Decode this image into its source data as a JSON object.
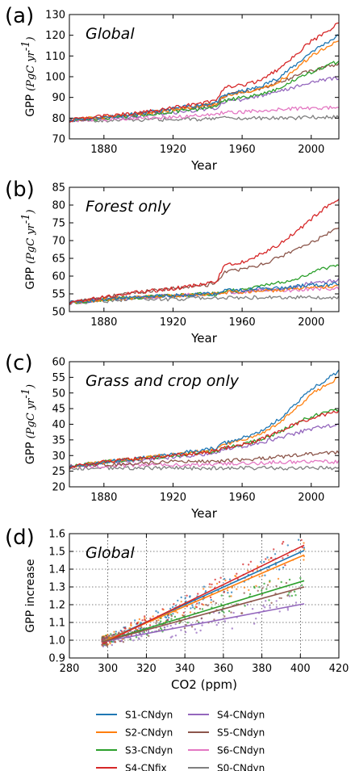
{
  "figure": {
    "legend_entries": [
      {
        "label": "S1-CNdyn",
        "color": "#1f77b4"
      },
      {
        "label": "S2-CNdyn",
        "color": "#ff7f0e"
      },
      {
        "label": "S3-CNdyn",
        "color": "#2ca02c"
      },
      {
        "label": "S4-CNfix",
        "color": "#d62728"
      },
      {
        "label": "S4-CNdyn",
        "color": "#9467bd"
      },
      {
        "label": "S5-CNdyn",
        "color": "#8c564b"
      },
      {
        "label": "S6-CNdyn",
        "color": "#e377c2"
      },
      {
        "label": "S0-CNdyn",
        "color": "#7f7f7f"
      }
    ]
  },
  "chart_data": [
    {
      "type": "line",
      "panel": "(a)",
      "title": "Global",
      "xlabel": "Year",
      "ylabel": "GPP",
      "ylabel_unit": "(PgC yr^-1)",
      "xlim": [
        1860,
        2016
      ],
      "ylim": [
        70,
        130
      ],
      "xticks": [
        1880,
        1920,
        1960,
        2000
      ],
      "yticks": [
        70,
        80,
        90,
        100,
        110,
        120,
        130
      ],
      "x": [
        1860,
        1880,
        1900,
        1920,
        1940,
        1945,
        1950,
        1960,
        1970,
        1980,
        1990,
        2000,
        2010,
        2016
      ],
      "series": [
        {
          "name": "S1-CNdyn",
          "color": "#1f77b4",
          "values": [
            79,
            80.5,
            82,
            84.5,
            87,
            87.5,
            91,
            93,
            95,
            99,
            105,
            112,
            117,
            120
          ]
        },
        {
          "name": "S2-CNdyn",
          "color": "#ff7f0e",
          "values": [
            79,
            80.5,
            82,
            84,
            86.5,
            87,
            90.5,
            92,
            93.5,
            97,
            103,
            110,
            115,
            118
          ]
        },
        {
          "name": "S3-CNdyn",
          "color": "#2ca02c",
          "values": [
            79,
            80,
            81.5,
            83,
            85,
            85.5,
            88.5,
            90,
            91.5,
            94,
            98,
            102,
            106,
            107
          ]
        },
        {
          "name": "S4-CNfix",
          "color": "#d62728",
          "values": [
            79,
            81,
            82.5,
            85,
            87.5,
            88,
            95,
            96,
            98,
            103,
            110,
            117,
            122,
            126
          ]
        },
        {
          "name": "S4-CNdyn",
          "color": "#9467bd",
          "values": [
            79,
            80,
            81,
            82.5,
            84.5,
            85,
            88,
            89,
            90.5,
            92.5,
            95,
            97,
            99,
            99.5
          ]
        },
        {
          "name": "S5-CNdyn",
          "color": "#8c564b",
          "values": [
            79,
            80.5,
            82,
            84,
            86,
            86.5,
            91,
            92.5,
            94,
            97,
            100,
            103,
            105,
            106
          ]
        },
        {
          "name": "S6-CNdyn",
          "color": "#e377c2",
          "values": [
            79,
            79.5,
            80,
            80.5,
            81.5,
            82,
            83,
            83,
            83.5,
            84,
            84.5,
            85,
            85,
            85
          ]
        },
        {
          "name": "S0-CNdyn",
          "color": "#7f7f7f",
          "values": [
            79,
            79,
            79,
            79.5,
            79.5,
            79.5,
            80,
            80,
            80,
            80,
            80,
            80.5,
            80.5,
            80.5
          ]
        }
      ]
    },
    {
      "type": "line",
      "panel": "(b)",
      "title": "Forest only",
      "xlabel": "Year",
      "ylabel": "GPP",
      "ylabel_unit": "(PgC yr^-1)",
      "xlim": [
        1860,
        2016
      ],
      "ylim": [
        50,
        85
      ],
      "xticks": [
        1880,
        1920,
        1960,
        2000
      ],
      "yticks": [
        50,
        55,
        60,
        65,
        70,
        75,
        80,
        85
      ],
      "x": [
        1860,
        1880,
        1900,
        1920,
        1940,
        1945,
        1950,
        1960,
        1970,
        1980,
        1990,
        2000,
        2010,
        2016
      ],
      "series": [
        {
          "name": "S1-CNdyn",
          "color": "#1f77b4",
          "values": [
            52.5,
            53.5,
            54,
            54.5,
            55,
            55,
            56,
            56,
            56.5,
            56.5,
            57,
            57.5,
            57.5,
            58
          ]
        },
        {
          "name": "S2-CNdyn",
          "color": "#ff7f0e",
          "values": [
            52.5,
            53.5,
            54,
            54.5,
            55,
            55,
            55.5,
            55.5,
            56,
            56,
            56.5,
            57,
            57,
            57.5
          ]
        },
        {
          "name": "S3-CNdyn",
          "color": "#2ca02c",
          "values": [
            52.5,
            53.5,
            54,
            54.5,
            55,
            55,
            56,
            56,
            57,
            58,
            59,
            61,
            62.5,
            63
          ]
        },
        {
          "name": "S4-CNfix",
          "color": "#d62728",
          "values": [
            52.5,
            54,
            55.5,
            56.5,
            58,
            58.5,
            63,
            64,
            66,
            68.5,
            72,
            76,
            80,
            82
          ]
        },
        {
          "name": "S4-CNdyn",
          "color": "#9467bd",
          "values": [
            52.5,
            53.5,
            54,
            54.5,
            55,
            55,
            55.5,
            55.5,
            56,
            56.5,
            57,
            58,
            58.5,
            59
          ]
        },
        {
          "name": "S5-CNdyn",
          "color": "#8c564b",
          "values": [
            52.5,
            54,
            55.5,
            56.5,
            57.5,
            58,
            61,
            62,
            63,
            65,
            67,
            69.5,
            72,
            73.5
          ]
        },
        {
          "name": "S6-CNdyn",
          "color": "#e377c2",
          "values": [
            52.5,
            53.5,
            54,
            54.5,
            55,
            55,
            55.5,
            55.5,
            56,
            56,
            56,
            56.5,
            56.5,
            56.5
          ]
        },
        {
          "name": "S0-CNdyn",
          "color": "#7f7f7f",
          "values": [
            52.5,
            53,
            53.5,
            53.5,
            54,
            54,
            54,
            54,
            54,
            54,
            54,
            54,
            54,
            54
          ]
        }
      ]
    },
    {
      "type": "line",
      "panel": "(c)",
      "title": "Grass and crop only",
      "xlabel": "Year",
      "ylabel": "GPP",
      "ylabel_unit": "(PgC yr^-1)",
      "xlim": [
        1860,
        2016
      ],
      "ylim": [
        20,
        60
      ],
      "xticks": [
        1880,
        1920,
        1960,
        2000
      ],
      "yticks": [
        20,
        25,
        30,
        35,
        40,
        45,
        50,
        55,
        60
      ],
      "x": [
        1860,
        1880,
        1900,
        1920,
        1940,
        1945,
        1950,
        1960,
        1970,
        1980,
        1990,
        2000,
        2010,
        2016
      ],
      "series": [
        {
          "name": "S1-CNdyn",
          "color": "#1f77b4",
          "values": [
            26.5,
            28,
            29,
            30.5,
            32,
            32.5,
            34,
            35.5,
            37.5,
            41,
            46,
            51,
            55,
            57
          ]
        },
        {
          "name": "S2-CNdyn",
          "color": "#ff7f0e",
          "values": [
            26.5,
            28,
            29,
            30.5,
            31.5,
            32,
            33.5,
            35,
            36.5,
            40,
            44.5,
            49.5,
            53,
            55
          ]
        },
        {
          "name": "S3-CNdyn",
          "color": "#2ca02c",
          "values": [
            26.5,
            28,
            29,
            30,
            31,
            31.5,
            32.5,
            33.5,
            35,
            37,
            40,
            42.5,
            44,
            45
          ]
        },
        {
          "name": "S4-CNfix",
          "color": "#d62728",
          "values": [
            26.5,
            28,
            29,
            30,
            31,
            31.5,
            32.5,
            33.5,
            35,
            37.5,
            40,
            42,
            43.5,
            44
          ]
        },
        {
          "name": "S4-CNdyn",
          "color": "#9467bd",
          "values": [
            26.5,
            27.5,
            28.5,
            29.5,
            30.5,
            31,
            32,
            33,
            34,
            35.5,
            37,
            38.5,
            39.5,
            40
          ]
        },
        {
          "name": "S5-CNdyn",
          "color": "#8c564b",
          "values": [
            26.5,
            27,
            27.5,
            28,
            28,
            28,
            28.5,
            28.5,
            29,
            29.5,
            30,
            30.5,
            31,
            31
          ]
        },
        {
          "name": "S6-CNdyn",
          "color": "#e377c2",
          "values": [
            26.5,
            26.5,
            27,
            27,
            27,
            27,
            27.5,
            27.5,
            27.5,
            28,
            28,
            28,
            28,
            28
          ]
        },
        {
          "name": "S0-CNdyn",
          "color": "#7f7f7f",
          "values": [
            26,
            26,
            26,
            26,
            26,
            26,
            26,
            26,
            26,
            26,
            26,
            26,
            26,
            26
          ]
        }
      ]
    },
    {
      "type": "scatter",
      "panel": "(d)",
      "title": "Global",
      "xlabel": "CO2 (ppm)",
      "ylabel": "GPP increase",
      "xlim": [
        280,
        420
      ],
      "ylim": [
        0.9,
        1.6
      ],
      "xticks": [
        280,
        300,
        320,
        340,
        360,
        380,
        400,
        420
      ],
      "yticks": [
        0.9,
        1.0,
        1.1,
        1.2,
        1.3,
        1.4,
        1.5,
        1.6
      ],
      "grid": true,
      "fit_x": [
        297,
        402
      ],
      "series": [
        {
          "name": "S1-CNdyn",
          "color": "#1f77b4",
          "fit": [
            0.99,
            1.505
          ]
        },
        {
          "name": "S2-CNdyn",
          "color": "#ff7f0e",
          "fit": [
            0.99,
            1.48
          ]
        },
        {
          "name": "S3-CNdyn",
          "color": "#2ca02c",
          "fit": [
            0.99,
            1.335
          ]
        },
        {
          "name": "S4-CNfix",
          "color": "#d62728",
          "fit": [
            0.98,
            1.535
          ]
        },
        {
          "name": "S4-CNdyn",
          "color": "#9467bd",
          "fit": [
            0.99,
            1.205
          ]
        },
        {
          "name": "S5-CNdyn",
          "color": "#8c564b",
          "fit": [
            0.99,
            1.3
          ]
        }
      ]
    }
  ]
}
